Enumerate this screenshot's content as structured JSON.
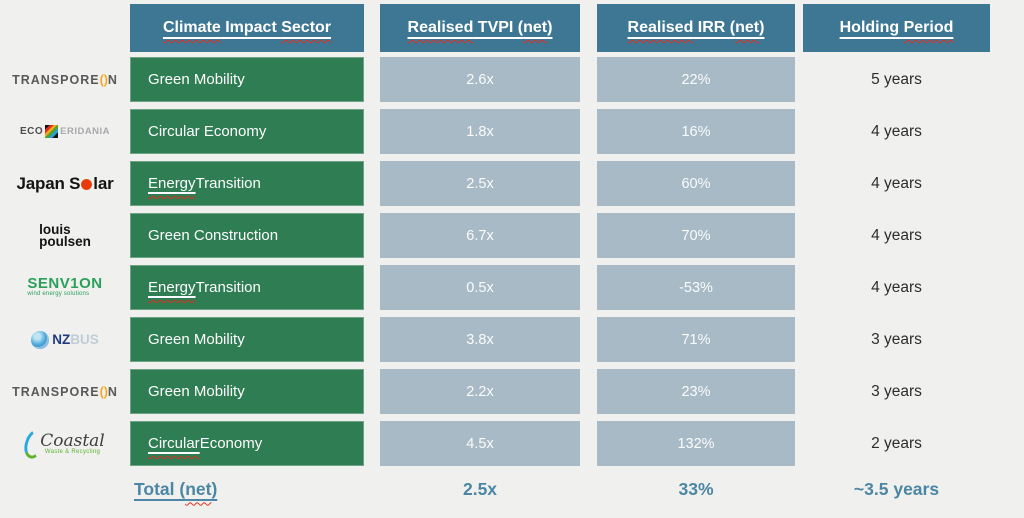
{
  "colors": {
    "header_bg": "#3e7794",
    "sector_bg": "#2e7d53",
    "value_bg": "#a8bac6",
    "page_bg": "#f0f0ee",
    "total_text": "#4b86a4",
    "squiggle_red": "#e0301e",
    "transporeon_accent": "#f5a81c"
  },
  "table": {
    "headers": [
      {
        "key": "sector",
        "segments": [
          {
            "t": "Climate",
            "u": true
          },
          {
            "t": " Impact ",
            "u": false
          },
          {
            "t": "Sector",
            "u": true
          }
        ]
      },
      {
        "key": "tvpi",
        "segments": [
          {
            "t": "Realised",
            "u": true
          },
          {
            "t": " TVPI (",
            "u": false
          },
          {
            "t": "net",
            "u": true
          },
          {
            "t": ")",
            "u": false
          }
        ]
      },
      {
        "key": "irr",
        "segments": [
          {
            "t": "Realised",
            "u": true
          },
          {
            "t": " IRR (",
            "u": false
          },
          {
            "t": "net",
            "u": true
          },
          {
            "t": ")",
            "u": false
          }
        ]
      },
      {
        "key": "holding",
        "segments": [
          {
            "t": "Holding ",
            "u": false
          },
          {
            "t": "Period",
            "u": true
          }
        ]
      }
    ],
    "rows": [
      {
        "company": "Transporeon",
        "logo": {
          "type": "transporeon",
          "pre": "TRANSPORE",
          "o": "()",
          "post": "N"
        },
        "sector": [
          {
            "t": "Green Mobility",
            "u": false
          }
        ],
        "tvpi": "2.6x",
        "irr": "22%",
        "holding": "5 years"
      },
      {
        "company": "Eco Eridania",
        "logo": {
          "type": "ecoeridania",
          "eco": "ECO",
          "eri": "ERIDANIA"
        },
        "sector": [
          {
            "t": "Circular Economy",
            "u": false
          }
        ],
        "tvpi": "1.8x",
        "irr": "16%",
        "holding": "4 years"
      },
      {
        "company": "Japan Solar",
        "logo": {
          "type": "japansolar",
          "pre": "Japan S",
          "post": "lar"
        },
        "sector": [
          {
            "t": "Energy",
            "u": true
          },
          {
            "t": " Transition",
            "u": false
          }
        ],
        "tvpi": "2.5x",
        "irr": "60%",
        "holding": "4 years"
      },
      {
        "company": "Louis Poulsen",
        "logo": {
          "type": "louispoulsen",
          "line1": "louis",
          "line2": "poulsen"
        },
        "sector": [
          {
            "t": "Green Construction",
            "u": false
          }
        ],
        "tvpi": "6.7x",
        "irr": "70%",
        "holding": "4 years"
      },
      {
        "company": "Senvion",
        "logo": {
          "type": "senvion",
          "main": "SENV1ON",
          "sub": "wind energy solutions"
        },
        "sector": [
          {
            "t": "Energy",
            "u": true
          },
          {
            "t": " Transition",
            "u": false
          }
        ],
        "tvpi": "0.5x",
        "irr": "-53%",
        "holding": "4 years"
      },
      {
        "company": "NZ Bus",
        "logo": {
          "type": "nzbus",
          "nz": "NZ",
          "bus": "BUS"
        },
        "sector": [
          {
            "t": "Green Mobility",
            "u": false
          }
        ],
        "tvpi": "3.8x",
        "irr": "71%",
        "holding": "3 years"
      },
      {
        "company": "Transporeon",
        "logo": {
          "type": "transporeon",
          "pre": "TRANSPORE",
          "o": "()",
          "post": "N"
        },
        "sector": [
          {
            "t": "Green Mobility",
            "u": false
          }
        ],
        "tvpi": "2.2x",
        "irr": "23%",
        "holding": "3 years"
      },
      {
        "company": "Coastal Waste & Recycling",
        "logo": {
          "type": "coastal",
          "main": "Coastal",
          "sub": "Waste & Recycling"
        },
        "sector": [
          {
            "t": "Circular",
            "u": true
          },
          {
            "t": " Economy",
            "u": false
          }
        ],
        "tvpi": "4.5x",
        "irr": "132%",
        "holding": "2 years"
      }
    ],
    "total": {
      "label_segments": [
        {
          "t": "Total (",
          "u": false
        },
        {
          "t": "net",
          "u": true
        },
        {
          "t": ")",
          "u": false
        }
      ],
      "tvpi": "2.5x",
      "irr": "33%",
      "holding": "~3.5 years"
    }
  }
}
